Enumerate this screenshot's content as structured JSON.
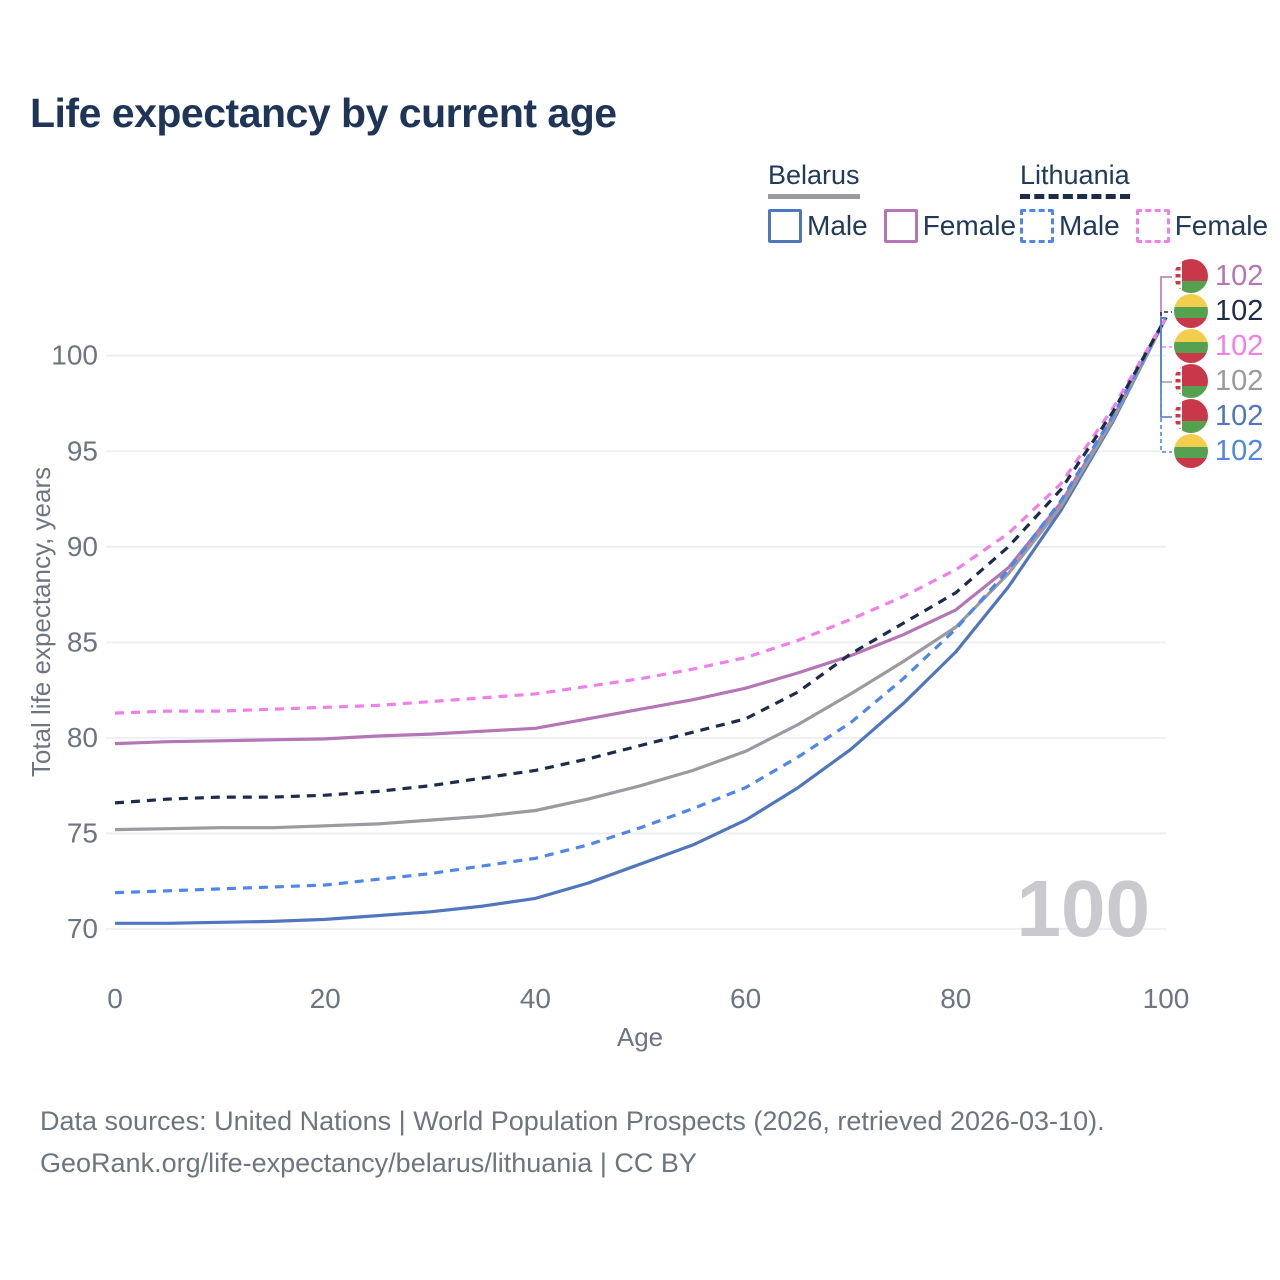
{
  "page": {
    "title": "Life expectancy by current age",
    "watermark_age": "100",
    "footer_line1": "Data sources: United Nations | World Population Prospects (2026, retrieved 2026-03-10).",
    "footer_line2": "GeoRank.org/life-expectancy/belarus/lithuania | CC BY"
  },
  "legend": {
    "groups": [
      {
        "country": "Belarus",
        "style": "solid",
        "underline_color": "#9a9aa0",
        "items": [
          {
            "label": "Male",
            "color": "#5077bd"
          },
          {
            "label": "Female",
            "color": "#b476b4"
          }
        ]
      },
      {
        "country": "Lithuania",
        "style": "dashed",
        "underline_color": "#1e2c4c",
        "items": [
          {
            "label": "Male",
            "color": "#4f86e8"
          },
          {
            "label": "Female",
            "color": "#f080e8"
          }
        ]
      }
    ]
  },
  "chart_data": {
    "type": "line",
    "title": "Life expectancy by current age",
    "xlabel": "Age",
    "ylabel": "Total life expectancy, years",
    "xticks": [
      0,
      20,
      40,
      60,
      80,
      100
    ],
    "yticks": [
      70,
      75,
      80,
      85,
      90,
      95,
      100
    ],
    "xlim": [
      0,
      100
    ],
    "ylim": [
      68.5,
      103
    ],
    "grid": "horizontal-only",
    "legend_position": "top-right",
    "ages": [
      0,
      5,
      10,
      15,
      20,
      25,
      30,
      35,
      40,
      45,
      50,
      55,
      60,
      65,
      70,
      75,
      80,
      85,
      90,
      95,
      100
    ],
    "series": [
      {
        "name": "Belarus Male",
        "country": "Belarus",
        "sex": "male",
        "line": "solid",
        "color": "#5077bd",
        "values": [
          70.3,
          70.3,
          70.35,
          70.4,
          70.5,
          70.7,
          70.9,
          71.2,
          71.6,
          72.4,
          73.4,
          74.4,
          75.7,
          77.4,
          79.4,
          81.8,
          84.5,
          87.9,
          91.9,
          96.6,
          102
        ]
      },
      {
        "name": "Belarus Female",
        "country": "Belarus",
        "sex": "female",
        "line": "solid",
        "color": "#b476b4",
        "values": [
          79.7,
          79.8,
          79.85,
          79.9,
          79.95,
          80.1,
          80.2,
          80.35,
          80.5,
          81.0,
          81.5,
          82.0,
          82.6,
          83.4,
          84.3,
          85.4,
          86.7,
          88.9,
          92.3,
          96.8,
          102
        ]
      },
      {
        "name": "Belarus Both sexes",
        "country": "Belarus",
        "sex": "both",
        "line": "solid",
        "color": "#9a9aa0",
        "values": [
          75.2,
          75.25,
          75.3,
          75.3,
          75.4,
          75.5,
          75.7,
          75.9,
          76.2,
          76.8,
          77.5,
          78.3,
          79.3,
          80.7,
          82.3,
          84.0,
          85.8,
          88.6,
          92.1,
          96.7,
          102
        ]
      },
      {
        "name": "Lithuania Male",
        "country": "Lithuania",
        "sex": "male",
        "line": "dashed",
        "color": "#4f86e8",
        "values": [
          71.9,
          72.0,
          72.1,
          72.2,
          72.3,
          72.6,
          72.9,
          73.3,
          73.7,
          74.4,
          75.3,
          76.3,
          77.4,
          79.0,
          80.8,
          83.1,
          85.7,
          88.8,
          92.4,
          96.9,
          102
        ]
      },
      {
        "name": "Lithuania Female",
        "country": "Lithuania",
        "sex": "female",
        "line": "dashed",
        "color": "#f080e8",
        "values": [
          81.3,
          81.4,
          81.4,
          81.5,
          81.6,
          81.7,
          81.9,
          82.1,
          82.3,
          82.7,
          83.1,
          83.6,
          84.2,
          85.1,
          86.2,
          87.4,
          88.8,
          90.7,
          93.3,
          97.3,
          102
        ]
      },
      {
        "name": "Lithuania Both sexes",
        "country": "Lithuania",
        "sex": "both",
        "line": "dashed",
        "color": "#1e2c4c",
        "values": [
          76.6,
          76.8,
          76.9,
          76.9,
          77.0,
          77.2,
          77.5,
          77.9,
          78.3,
          78.9,
          79.6,
          80.3,
          81.0,
          82.4,
          84.4,
          86.0,
          87.6,
          90.0,
          93.0,
          97.1,
          102
        ]
      }
    ],
    "end_labels": [
      {
        "series": "Belarus Female",
        "country": "belarus",
        "value": "102",
        "color": "#b476b4",
        "line": "solid"
      },
      {
        "series": "Lithuania Both sexes",
        "country": "lithuania",
        "value": "102",
        "color": "#1e2c4c",
        "line": "dashed"
      },
      {
        "series": "Lithuania Female",
        "country": "lithuania",
        "value": "102",
        "color": "#f080e8",
        "line": "dashed"
      },
      {
        "series": "Belarus Both sexes",
        "country": "belarus",
        "value": "102",
        "color": "#9a9aa0",
        "line": "solid"
      },
      {
        "series": "Belarus Male",
        "country": "belarus",
        "value": "102",
        "color": "#5077bd",
        "line": "solid"
      },
      {
        "series": "Lithuania Male",
        "country": "lithuania",
        "value": "102",
        "color": "#4f86e8",
        "line": "dashed"
      }
    ]
  }
}
